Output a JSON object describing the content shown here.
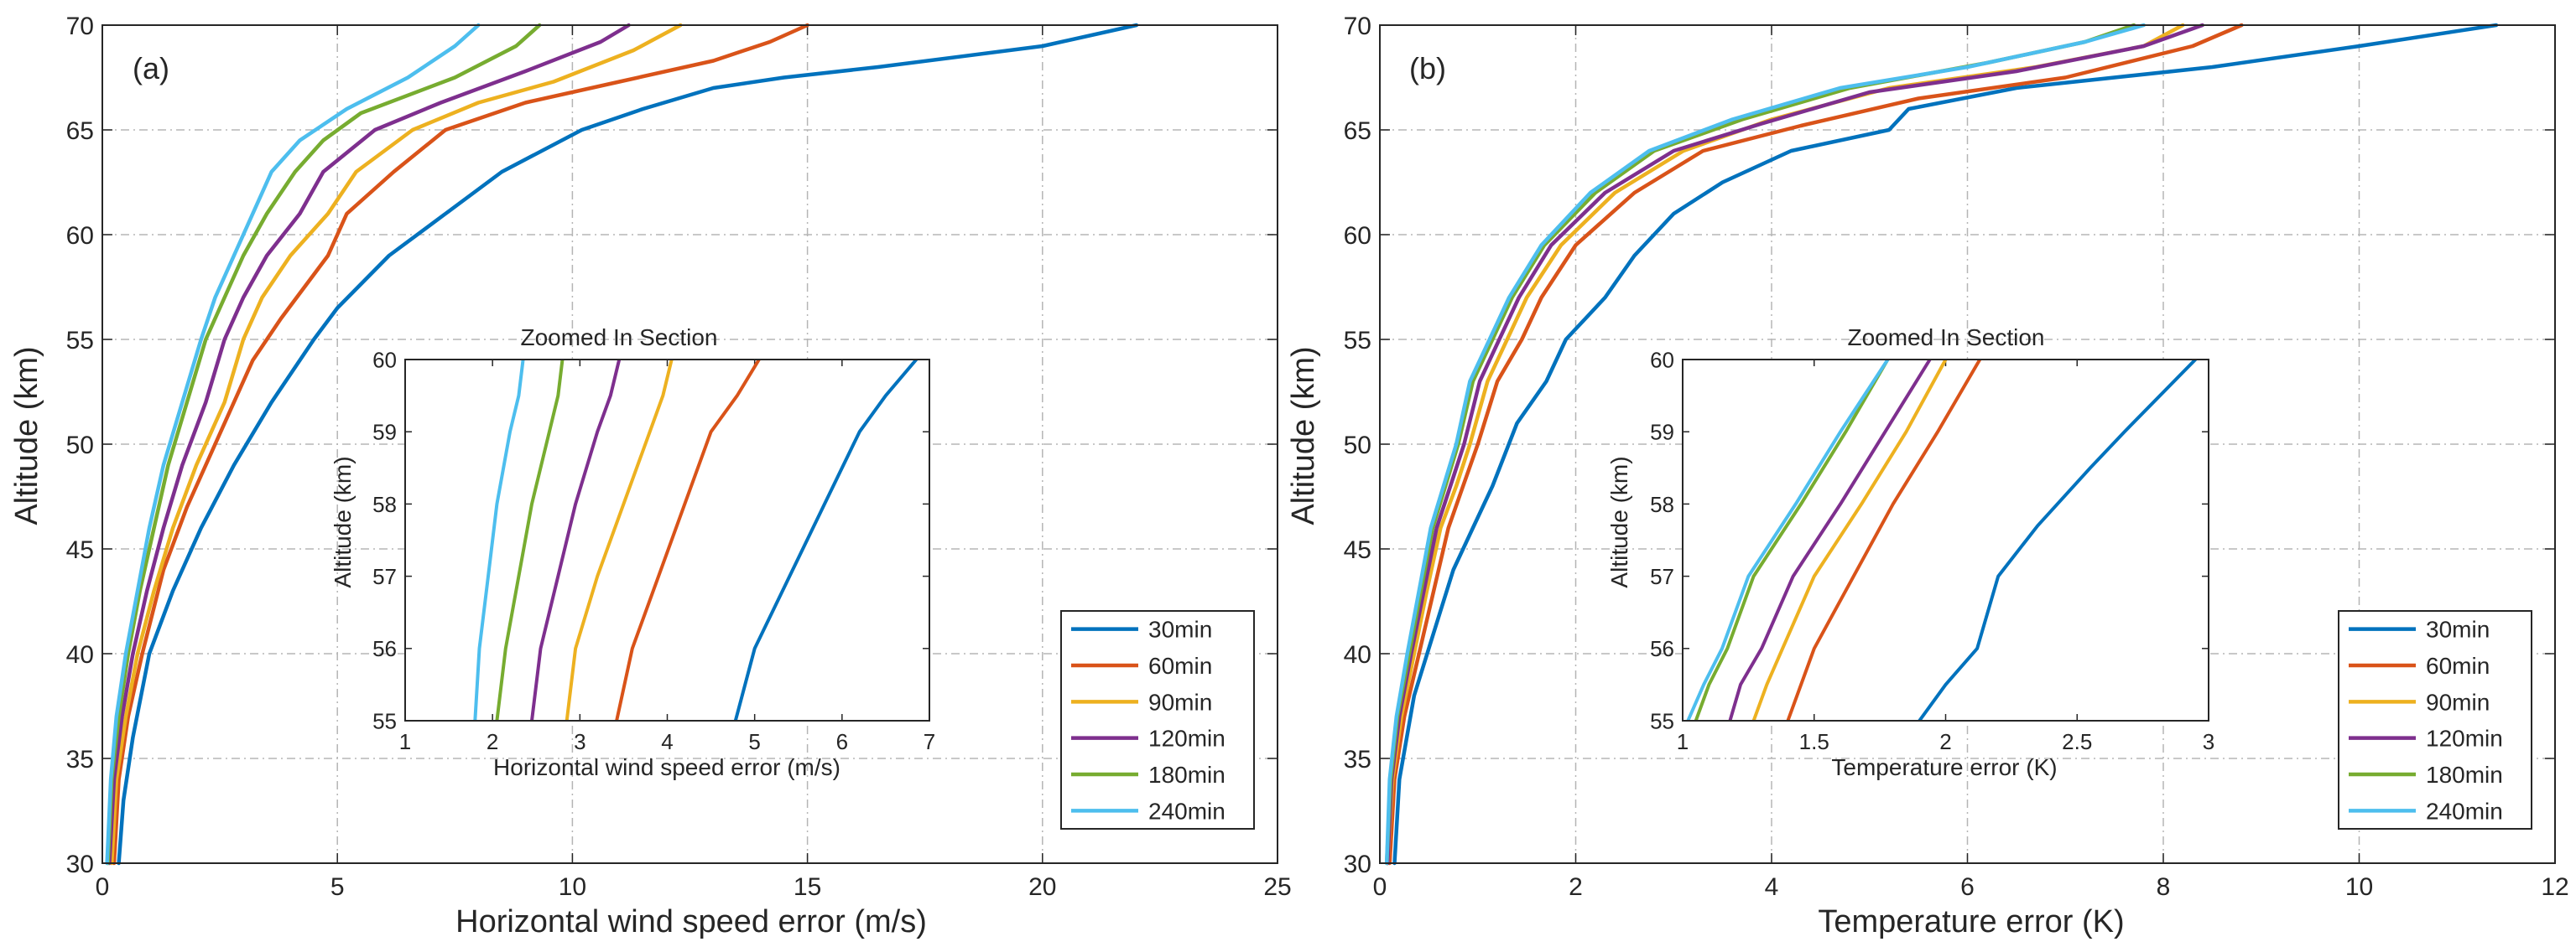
{
  "chart_data": [
    {
      "type": "line",
      "panel_label": "(a)",
      "xlabel": "Horizontal wind speed error (m/s)",
      "ylabel": "Altitude (km)",
      "xlim": [
        0,
        25
      ],
      "ylim": [
        30,
        70
      ],
      "xticks": [
        0,
        5,
        10,
        15,
        20,
        25
      ],
      "yticks": [
        30,
        35,
        40,
        45,
        50,
        55,
        60,
        65,
        70
      ],
      "grid": true,
      "legend_position": "bottom-right",
      "series": [
        {
          "name": "30min",
          "color": "#0072BD",
          "x": [
            0.35,
            0.45,
            0.65,
            1.0,
            1.5,
            2.1,
            2.8,
            3.6,
            4.5,
            5.0,
            6.1,
            7.3,
            8.5,
            10.2,
            11.5,
            13.0,
            14.5,
            16.5,
            20.0,
            22.0
          ],
          "y": [
            30,
            33,
            36,
            40,
            43,
            46,
            49,
            52,
            55,
            56.5,
            59,
            61,
            63,
            65,
            66,
            67,
            67.5,
            68,
            69,
            70
          ]
        },
        {
          "name": "60min",
          "color": "#D95319",
          "x": [
            0.25,
            0.35,
            0.55,
            0.85,
            1.3,
            1.8,
            2.4,
            3.2,
            3.8,
            4.8,
            5.2,
            6.2,
            7.3,
            9.0,
            11.0,
            13.0,
            14.2,
            15.0
          ],
          "y": [
            30,
            34,
            37,
            40,
            44,
            47,
            50,
            54,
            56,
            59,
            61,
            63,
            65,
            66.3,
            67.3,
            68.3,
            69.2,
            70
          ]
        },
        {
          "name": "90min",
          "color": "#EDB120",
          "x": [
            0.2,
            0.3,
            0.5,
            0.75,
            1.1,
            1.5,
            2.0,
            2.6,
            3.0,
            3.4,
            4.0,
            4.8,
            5.4,
            6.6,
            8.0,
            9.6,
            11.3,
            12.3
          ],
          "y": [
            30,
            34,
            37,
            40,
            43,
            46,
            49,
            52,
            55,
            57,
            59,
            61,
            63,
            65,
            66.3,
            67.3,
            68.8,
            70
          ]
        },
        {
          "name": "120min",
          "color": "#7E2F8E",
          "x": [
            0.15,
            0.25,
            0.42,
            0.65,
            0.95,
            1.3,
            1.7,
            2.2,
            2.6,
            3.0,
            3.5,
            4.2,
            4.7,
            5.8,
            7.2,
            9.0,
            10.6,
            11.2
          ],
          "y": [
            30,
            34,
            37,
            40,
            43,
            46,
            49,
            52,
            55,
            57,
            59,
            61,
            63,
            65,
            66.3,
            67.8,
            69.2,
            70
          ]
        },
        {
          "name": "180min",
          "color": "#77AC30",
          "x": [
            0.12,
            0.2,
            0.35,
            0.55,
            0.8,
            1.1,
            1.4,
            1.8,
            2.2,
            2.6,
            3.0,
            3.5,
            4.1,
            4.7,
            5.5,
            7.5,
            8.8,
            9.3
          ],
          "y": [
            30,
            34,
            37,
            40,
            43,
            46,
            49,
            52,
            55,
            57,
            59,
            61,
            63,
            64.5,
            65.8,
            67.5,
            69,
            70
          ]
        },
        {
          "name": "240min",
          "color": "#4DBEEE",
          "x": [
            0.1,
            0.18,
            0.3,
            0.5,
            0.75,
            1.0,
            1.3,
            1.7,
            2.1,
            2.4,
            2.8,
            3.2,
            3.6,
            4.2,
            5.2,
            6.5,
            7.5,
            8.0
          ],
          "y": [
            30,
            34,
            37,
            40,
            43,
            46,
            49,
            52,
            55,
            57,
            59,
            61,
            63,
            64.5,
            66,
            67.5,
            69,
            70
          ]
        }
      ],
      "inset": {
        "title": "Zoomed In Section",
        "xlabel": "Horizontal wind speed error (m/s)",
        "ylabel": "Altitude (km)",
        "xlim": [
          1,
          7
        ],
        "ylim": [
          55,
          60
        ],
        "xticks": [
          1,
          2,
          3,
          4,
          5,
          6,
          7
        ],
        "yticks": [
          55,
          56,
          57,
          58,
          59,
          60
        ],
        "series": [
          {
            "name": "30min",
            "x": [
              4.78,
              5.0,
              5.4,
              5.8,
              6.2,
              6.5,
              6.85
            ],
            "y": [
              55,
              56,
              57,
              58,
              59,
              59.5,
              60
            ]
          },
          {
            "name": "60min",
            "x": [
              3.42,
              3.6,
              3.9,
              4.2,
              4.5,
              4.8,
              5.05
            ],
            "y": [
              55,
              56,
              57,
              58,
              59,
              59.5,
              60
            ]
          },
          {
            "name": "90min",
            "x": [
              2.85,
              2.95,
              3.2,
              3.5,
              3.8,
              3.95,
              4.05
            ],
            "y": [
              55,
              56,
              57,
              58,
              59,
              59.5,
              60
            ]
          },
          {
            "name": "120min",
            "x": [
              2.45,
              2.55,
              2.75,
              2.95,
              3.2,
              3.35,
              3.45
            ],
            "y": [
              55,
              56,
              57,
              58,
              59,
              59.5,
              60
            ]
          },
          {
            "name": "180min",
            "x": [
              2.05,
              2.15,
              2.3,
              2.45,
              2.65,
              2.75,
              2.8
            ],
            "y": [
              55,
              56,
              57,
              58,
              59,
              59.5,
              60
            ]
          },
          {
            "name": "240min",
            "x": [
              1.8,
              1.85,
              1.95,
              2.05,
              2.2,
              2.3,
              2.35
            ],
            "y": [
              55,
              56,
              57,
              58,
              59,
              59.5,
              60
            ]
          }
        ]
      }
    },
    {
      "type": "line",
      "panel_label": "(b)",
      "xlabel": "Temperature error (K)",
      "ylabel": "Altitude (km)",
      "xlim": [
        0,
        12
      ],
      "ylim": [
        30,
        70
      ],
      "xticks": [
        0,
        2,
        4,
        6,
        8,
        10,
        12
      ],
      "yticks": [
        30,
        35,
        40,
        45,
        50,
        55,
        60,
        65,
        70
      ],
      "grid": true,
      "legend_position": "bottom-right",
      "series": [
        {
          "name": "30min",
          "color": "#0072BD",
          "x": [
            0.15,
            0.2,
            0.35,
            0.55,
            0.75,
            0.95,
            1.15,
            1.4,
            1.7,
            1.9,
            2.1,
            2.3,
            2.6,
            3.0,
            3.5,
            4.2,
            5.2,
            5.4,
            6.5,
            8.5,
            10.0,
            11.4
          ],
          "y": [
            30,
            34,
            38,
            41,
            44,
            46,
            48,
            51,
            53,
            55,
            56,
            57,
            59,
            61,
            62.5,
            64,
            65,
            66,
            67,
            68,
            69,
            70
          ]
        },
        {
          "name": "60min",
          "color": "#D95319",
          "x": [
            0.1,
            0.15,
            0.25,
            0.4,
            0.55,
            0.7,
            0.85,
            1.0,
            1.2,
            1.45,
            1.65,
            2.0,
            2.6,
            3.3,
            4.3,
            5.5,
            7.0,
            8.3,
            8.8
          ],
          "y": [
            30,
            34,
            37,
            40,
            43,
            46,
            48,
            50,
            53,
            55,
            57,
            59.5,
            62,
            64,
            65.2,
            66.5,
            67.5,
            69,
            70
          ]
        },
        {
          "name": "90min",
          "color": "#EDB120",
          "x": [
            0.08,
            0.13,
            0.22,
            0.35,
            0.48,
            0.62,
            0.78,
            0.92,
            1.1,
            1.3,
            1.5,
            1.85,
            2.4,
            3.1,
            4.0,
            5.2,
            6.7,
            7.8,
            8.2
          ],
          "y": [
            30,
            34,
            37,
            40,
            43,
            46,
            48,
            50,
            53,
            55,
            57,
            59.5,
            62,
            64,
            65.5,
            67,
            68,
            69,
            70
          ]
        },
        {
          "name": "120min",
          "color": "#7E2F8E",
          "x": [
            0.08,
            0.12,
            0.2,
            0.32,
            0.45,
            0.58,
            0.72,
            0.86,
            1.02,
            1.22,
            1.42,
            1.75,
            2.3,
            3.0,
            3.9,
            5.0,
            6.5,
            7.8,
            8.4
          ],
          "y": [
            30,
            34,
            37,
            40,
            43,
            46,
            48,
            50,
            53,
            55,
            57,
            59.5,
            62,
            64,
            65.3,
            66.8,
            67.8,
            69,
            70
          ]
        },
        {
          "name": "180min",
          "color": "#77AC30",
          "x": [
            0.07,
            0.11,
            0.18,
            0.3,
            0.42,
            0.54,
            0.67,
            0.8,
            0.95,
            1.15,
            1.35,
            1.68,
            2.2,
            2.8,
            3.7,
            4.8,
            6.2,
            7.2,
            7.7
          ],
          "y": [
            30,
            34,
            37,
            40,
            43,
            46,
            48,
            50,
            53,
            55,
            57,
            59.5,
            62,
            64,
            65.5,
            67,
            68.2,
            69.2,
            70
          ]
        },
        {
          "name": "240min",
          "color": "#4DBEEE",
          "x": [
            0.07,
            0.1,
            0.17,
            0.28,
            0.4,
            0.52,
            0.65,
            0.78,
            0.92,
            1.12,
            1.32,
            1.65,
            2.15,
            2.75,
            3.6,
            4.7,
            6.0,
            7.2,
            7.8
          ],
          "y": [
            30,
            34,
            37,
            40,
            43,
            46,
            48,
            50,
            53,
            55,
            57,
            59.5,
            62,
            64,
            65.5,
            67,
            68,
            69.2,
            70
          ]
        }
      ],
      "inset": {
        "title": "Zoomed In Section",
        "xlabel": "Temperature error (K)",
        "ylabel": "Altitude (km)",
        "xlim": [
          1,
          3
        ],
        "ylim": [
          55,
          60
        ],
        "xticks": [
          1,
          1.5,
          2,
          2.5,
          3
        ],
        "yticks": [
          55,
          56,
          57,
          58,
          59,
          60
        ],
        "series": [
          {
            "name": "30min",
            "x": [
              1.9,
              2.0,
              2.12,
              2.2,
              2.35,
              2.55,
              2.68,
              2.95
            ],
            "y": [
              55,
              55.5,
              56,
              57,
              57.7,
              58.5,
              59,
              60
            ]
          },
          {
            "name": "60min",
            "x": [
              1.4,
              1.45,
              1.5,
              1.65,
              1.8,
              1.97,
              2.13
            ],
            "y": [
              55,
              55.5,
              56,
              57,
              58,
              59,
              60
            ]
          },
          {
            "name": "90min",
            "x": [
              1.27,
              1.32,
              1.38,
              1.5,
              1.68,
              1.85,
              2.0
            ],
            "y": [
              55,
              55.5,
              56,
              57,
              58,
              59,
              60
            ]
          },
          {
            "name": "120min",
            "x": [
              1.18,
              1.22,
              1.3,
              1.42,
              1.6,
              1.77,
              1.94
            ],
            "y": [
              55,
              55.5,
              56,
              57,
              58,
              59,
              60
            ]
          },
          {
            "name": "180min",
            "x": [
              1.05,
              1.1,
              1.17,
              1.27,
              1.45,
              1.62,
              1.78
            ],
            "y": [
              55,
              55.5,
              56,
              57,
              58,
              59,
              60
            ]
          },
          {
            "name": "240min",
            "x": [
              1.02,
              1.08,
              1.15,
              1.25,
              1.43,
              1.6,
              1.78
            ],
            "y": [
              55,
              55.5,
              56,
              57,
              58,
              59,
              60
            ]
          }
        ]
      }
    }
  ]
}
